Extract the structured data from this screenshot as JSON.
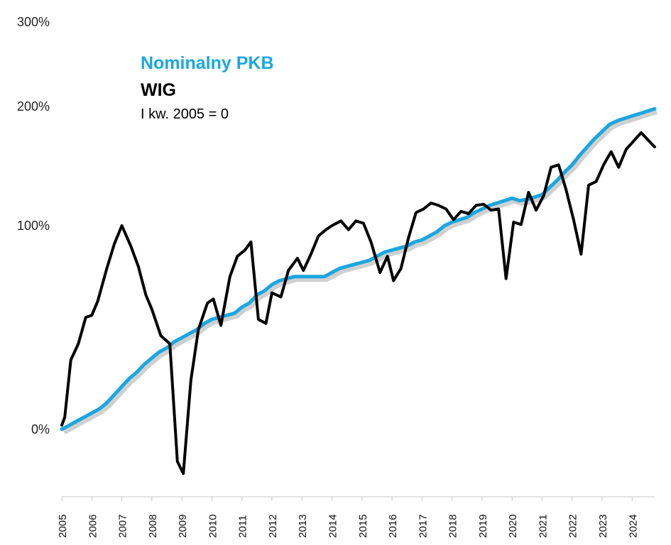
{
  "chart_data": {
    "type": "line",
    "title": "",
    "xlabel": "",
    "ylabel": "",
    "xlim": [
      2005.0,
      2024.75
    ],
    "y_ticks": [
      {
        "value": 0,
        "label": "0%"
      },
      {
        "value": 100,
        "label": "100%"
      },
      {
        "value": 200,
        "label": "200%"
      },
      {
        "value": 300,
        "label": "300%"
      }
    ],
    "x_ticks": [
      "2005",
      "2006",
      "2007",
      "2008",
      "2009",
      "2010",
      "2011",
      "2012",
      "2013",
      "2014",
      "2015",
      "2016",
      "2017",
      "2018",
      "2019",
      "2020",
      "2021",
      "2022",
      "2023",
      "2024"
    ],
    "legend": {
      "placement": "top-left",
      "entries": [
        {
          "label": "Nominalny PKB",
          "color": "#1aa7e0"
        },
        {
          "label": "WIG",
          "color": "#000000"
        }
      ],
      "note": "I kw. 2005 = 0"
    },
    "series": [
      {
        "name": "Nominalny PKB",
        "color": "#1aa7e0",
        "x": [
          2005.0,
          2005.25,
          2005.5,
          2005.75,
          2006.0,
          2006.25,
          2006.5,
          2006.75,
          2007.0,
          2007.25,
          2007.5,
          2007.75,
          2008.0,
          2008.25,
          2008.5,
          2008.75,
          2009.0,
          2009.25,
          2009.5,
          2009.75,
          2010.0,
          2010.25,
          2010.5,
          2010.75,
          2011.0,
          2011.25,
          2011.5,
          2011.75,
          2012.0,
          2012.25,
          2012.5,
          2012.75,
          2013.0,
          2013.25,
          2013.5,
          2013.75,
          2014.0,
          2014.25,
          2014.5,
          2014.75,
          2015.0,
          2015.25,
          2015.5,
          2015.75,
          2016.0,
          2016.25,
          2016.5,
          2016.75,
          2017.0,
          2017.25,
          2017.5,
          2017.75,
          2018.0,
          2018.25,
          2018.5,
          2018.75,
          2019.0,
          2019.25,
          2019.5,
          2019.75,
          2020.0,
          2020.25,
          2020.5,
          2020.75,
          2021.0,
          2021.25,
          2021.5,
          2021.75,
          2022.0,
          2022.25,
          2022.5,
          2022.75,
          2023.0,
          2023.25,
          2023.5,
          2023.75,
          2024.0,
          2024.25,
          2024.5,
          2024.75
        ],
        "values": [
          0,
          2,
          4,
          6,
          8,
          10,
          13,
          17,
          21,
          25,
          28,
          32,
          35,
          38,
          40,
          43,
          45,
          47,
          49,
          52,
          54,
          55,
          56,
          57,
          60,
          62,
          66,
          68,
          71,
          73,
          74,
          75,
          75,
          75,
          75,
          75,
          77,
          79,
          80,
          81,
          82,
          83,
          85,
          87,
          88,
          89,
          90,
          92,
          93,
          95,
          97,
          100,
          103,
          105,
          107,
          111,
          114,
          117,
          119,
          121,
          123,
          121,
          122,
          124,
          126,
          132,
          138,
          145,
          151,
          159,
          166,
          173,
          179,
          185,
          188,
          190,
          192,
          194,
          196,
          198
        ]
      },
      {
        "name": "WIG",
        "color": "#000000",
        "x": [
          2005.0,
          2005.1,
          2005.3,
          2005.55,
          2005.8,
          2006.0,
          2006.2,
          2006.5,
          2006.75,
          2007.0,
          2007.3,
          2007.55,
          2007.8,
          2008.0,
          2008.3,
          2008.6,
          2008.85,
          2009.05,
          2009.3,
          2009.55,
          2009.85,
          2010.05,
          2010.3,
          2010.6,
          2010.85,
          2011.1,
          2011.3,
          2011.55,
          2011.8,
          2012.0,
          2012.3,
          2012.55,
          2012.85,
          2013.05,
          2013.3,
          2013.55,
          2013.8,
          2014.0,
          2014.3,
          2014.55,
          2014.8,
          2015.05,
          2015.3,
          2015.6,
          2015.85,
          2016.05,
          2016.3,
          2016.55,
          2016.8,
          2017.05,
          2017.3,
          2017.55,
          2017.8,
          2018.05,
          2018.3,
          2018.55,
          2018.8,
          2019.05,
          2019.3,
          2019.55,
          2019.8,
          2020.05,
          2020.3,
          2020.55,
          2020.8,
          2021.05,
          2021.3,
          2021.55,
          2021.8,
          2022.05,
          2022.3,
          2022.55,
          2022.8,
          2023.05,
          2023.3,
          2023.55,
          2023.8,
          2024.05,
          2024.3,
          2024.75
        ],
        "values": [
          2,
          6,
          34,
          42,
          55,
          56,
          63,
          79,
          91,
          100,
          90,
          80,
          66,
          59,
          46,
          42,
          -16,
          -22,
          24,
          49,
          62,
          64,
          51,
          75,
          85,
          88,
          92,
          54,
          52,
          67,
          65,
          78,
          84,
          78,
          86,
          95,
          98,
          100,
          104,
          98,
          104,
          102,
          92,
          77,
          85,
          73,
          79,
          94,
          111,
          114,
          119,
          117,
          114,
          105,
          112,
          110,
          117,
          118,
          113,
          114,
          74,
          103,
          101,
          128,
          113,
          125,
          149,
          151,
          130,
          105,
          86,
          134,
          137,
          151,
          162,
          149,
          164,
          171,
          178,
          166
        ]
      }
    ]
  }
}
